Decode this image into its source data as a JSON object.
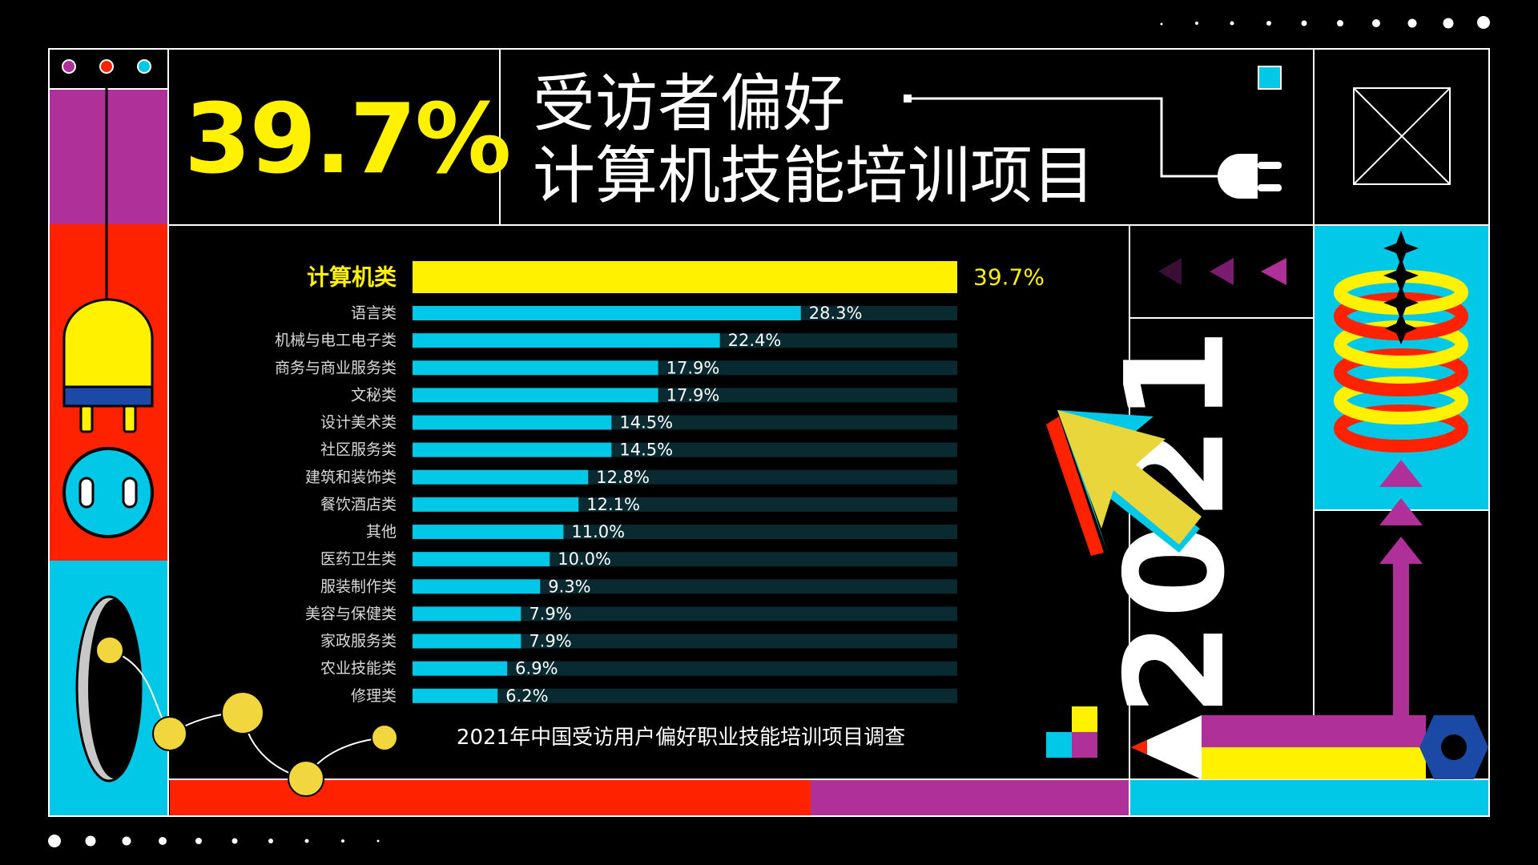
{
  "stat": {
    "value": "39.7%"
  },
  "title": {
    "line1": "受访者偏好",
    "line2": "计算机技能培训项目"
  },
  "year": "2021",
  "caption": "2021年中国受访用户偏好职业技能培训项目调查",
  "colors": {
    "highlight": "#fff100",
    "bar": "#00c8e6",
    "track": "#082a30",
    "red": "#ff2200",
    "purple": "#b0309a",
    "cyan": "#00c8e6"
  },
  "chart_data": {
    "type": "bar",
    "orientation": "horizontal",
    "categories": [
      "计算机类",
      "语言类",
      "机械与电工电子类",
      "商务与商业服务类",
      "文秘类",
      "设计美术类",
      "社区服务类",
      "建筑和装饰类",
      "餐饮酒店类",
      "其他",
      "医药卫生类",
      "服装制作类",
      "美容与保健类",
      "家政服务类",
      "农业技能类",
      "修理类"
    ],
    "values": [
      39.7,
      28.3,
      22.4,
      17.9,
      17.9,
      14.5,
      14.5,
      12.8,
      12.1,
      11.0,
      10.0,
      9.3,
      7.9,
      7.9,
      6.9,
      6.2
    ],
    "value_labels": [
      "39.7%",
      "28.3%",
      "22.4%",
      "17.9%",
      "17.9%",
      "14.5%",
      "14.5%",
      "12.8%",
      "12.1%",
      "11.0%",
      "10.0%",
      "9.3%",
      "7.9%",
      "7.9%",
      "6.9%",
      "6.2%"
    ],
    "highlight_index": 0,
    "xlim": [
      0,
      39.7
    ],
    "unit": "%",
    "grid": false,
    "legend": "none"
  }
}
